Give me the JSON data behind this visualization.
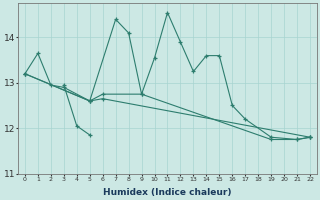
{
  "xlabel": "Humidex (Indice chaleur)",
  "color": "#2d7d6e",
  "bg_color": "#cce8e4",
  "grid_color": "#a8d4d0",
  "ylim": [
    11.0,
    14.75
  ],
  "yticks": [
    11,
    12,
    13,
    14
  ],
  "xlim": [
    -0.5,
    22.5
  ],
  "x_values": [
    0,
    1,
    2,
    3,
    4,
    5,
    6,
    7,
    8,
    9,
    10,
    11,
    12,
    13,
    14,
    15,
    16,
    17,
    18,
    19,
    20,
    21,
    22
  ],
  "line1_x": [
    0,
    1,
    2,
    3,
    5,
    6,
    9,
    19,
    21,
    22
  ],
  "line1_y": [
    13.2,
    13.65,
    12.95,
    12.9,
    12.6,
    12.75,
    12.75,
    11.75,
    11.75,
    11.8
  ],
  "line2_x": [
    3,
    4,
    5
  ],
  "line2_y": [
    12.95,
    12.05,
    11.85
  ],
  "line3_x": [
    0,
    5,
    7,
    8,
    9,
    10,
    11,
    12,
    13,
    14,
    15,
    16,
    17,
    19,
    21,
    22
  ],
  "line3_y": [
    13.2,
    12.6,
    14.4,
    14.1,
    12.75,
    13.55,
    14.55,
    13.9,
    13.25,
    13.6,
    13.6,
    12.5,
    12.2,
    11.8,
    11.75,
    11.8
  ],
  "line4_x": [
    0,
    5,
    6,
    22
  ],
  "line4_y": [
    13.2,
    12.6,
    12.65,
    11.8
  ]
}
